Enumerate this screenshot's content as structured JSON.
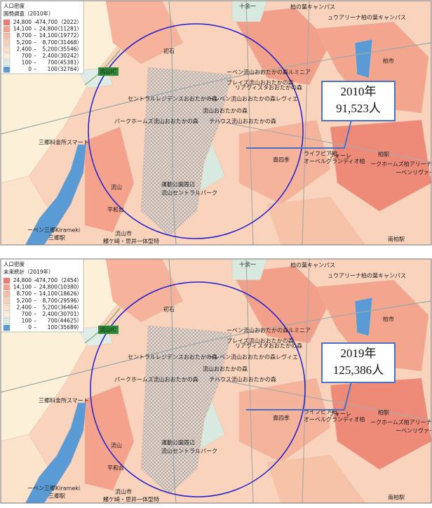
{
  "panels": [
    {
      "legend": {
        "title": "人口密度",
        "subtitle": "国勢調査（2010年）",
        "rows": [
          {
            "low": "24,800",
            "high": "474,700",
            "count": "（2022）"
          },
          {
            "low": "14,100",
            "high": "24,800",
            "count": "（11281）"
          },
          {
            "low": "8,700",
            "high": "14,100",
            "count": "（19772）"
          },
          {
            "low": "5,200",
            "high": "8,700",
            "count": "（31468）"
          },
          {
            "low": "2,400",
            "high": "5,200",
            "count": "（35546）"
          },
          {
            "low": "700",
            "high": "2,400",
            "count": "（30242）"
          },
          {
            "low": "100",
            "high": "700",
            "count": "（45381）"
          },
          {
            "low": "0",
            "high": "100",
            "count": "（32764）"
          }
        ]
      },
      "callout": {
        "year": "2010年",
        "population": "91,523人"
      },
      "places": [
        "初石",
        "流山IC",
        "三郷料金所スマート",
        "流山",
        "平和台",
        "流山市",
        "鰭ケ崎・思井一体型特",
        "運動公園周辺",
        "流山セントラルパーク",
        "流山おおたかの森",
        "セントラルレジデンスおおたかの森",
        "パークホームズ流山おおたかの森",
        "ーベン流山おおたかの森ルミニア",
        "プレイズ流山おおたかの森",
        "リアヴィスタおおたかの森",
        "ーレベン流山おおたかの森レヴィエ",
        "テハウス流山おおたかの森",
        "柏の葉キャンパス",
        "ュウアリーナ柏の葉キャンパス",
        "柏市",
        "柏駅",
        "ライフピア柏",
        "フォーレ",
        "オーベルグランディオ柏",
        "ークホームズ柏アリーナ",
        "ーベンリヴァー",
        "豊四季",
        "ーベン三郷Kirameki",
        "三郷駅",
        "南柏駅",
        "十余一"
      ]
    },
    {
      "legend": {
        "title": "人口密度",
        "subtitle": "未来統計（2019年）",
        "rows": [
          {
            "low": "24,800",
            "high": "474,700",
            "count": "（2454）"
          },
          {
            "low": "14,100",
            "high": "24,800",
            "count": "（10380）"
          },
          {
            "low": "8,700",
            "high": "14,100",
            "count": "（18626）"
          },
          {
            "low": "5,200",
            "high": "8,700",
            "count": "（29596）"
          },
          {
            "low": "2,400",
            "high": "5,200",
            "count": "（36464）"
          },
          {
            "low": "700",
            "high": "2,400",
            "count": "（30701）"
          },
          {
            "low": "100",
            "high": "700",
            "count": "（44625）"
          },
          {
            "low": "0",
            "high": "100",
            "count": "（35689）"
          }
        ]
      },
      "callout": {
        "year": "2019年",
        "population": "125,386人"
      },
      "places": [
        "初石",
        "流山IC",
        "三郷料金所スマート",
        "流山",
        "平和台",
        "流山市",
        "鰭ケ崎・思井一体型特",
        "運動公園周辺",
        "流山セントラルパーク",
        "流山おおたかの森",
        "セントラルレジデンスおおたかの森",
        "パークホームズ流山おおたかの森",
        "ーベン流山おおたかの森ルミニア",
        "プレイズ流山おおたかの森",
        "リアヴィスタおおたかの森",
        "ーレベン流山おおたかの森レヴィエ",
        "テハウス流山おおたかの森",
        "柏の葉キャンパス",
        "ュウアリーナ柏の葉キャンパス",
        "柏市",
        "柏駅",
        "ライフピア柏",
        "フォーレ",
        "オーベルグランディオ柏",
        "ークホームズ柏アリーナ",
        "ーベンリヴァー",
        "豊四季",
        "ーベン三郷Kirameki",
        "三郷駅",
        "南柏駅",
        "十余一"
      ]
    }
  ]
}
